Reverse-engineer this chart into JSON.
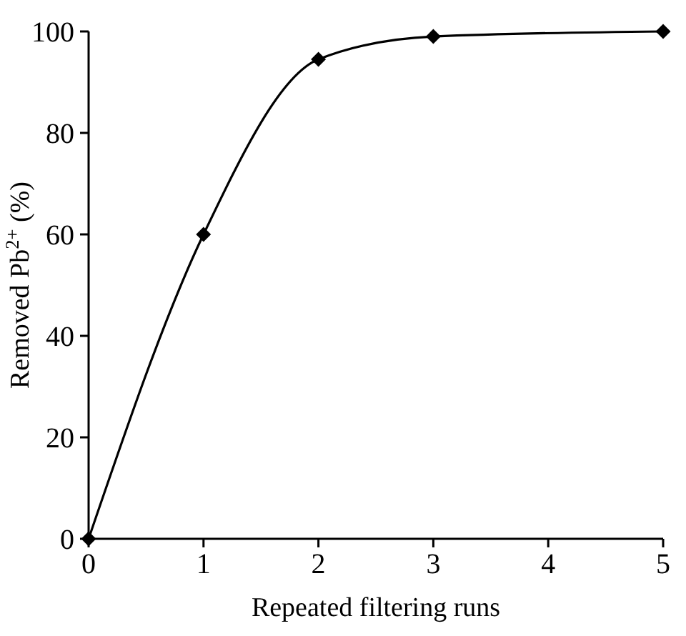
{
  "chart_data": {
    "type": "line",
    "xlabel": "Repeated filtering runs",
    "ylabel": "Removed Pb$^{2+}$ (%)",
    "x": [
      0,
      1,
      2,
      3,
      5
    ],
    "series": [
      {
        "color": "#000000",
        "values": [
          0,
          60,
          94.5,
          99,
          100
        ]
      }
    ],
    "xlim": [
      0,
      5
    ],
    "xticks": [
      0,
      1,
      2,
      3,
      4,
      5
    ],
    "ylim": [
      0,
      100
    ],
    "yticks": [
      0,
      20,
      40,
      60,
      80,
      100
    ],
    "marker": "diamond",
    "line_style": "solid",
    "grid": false
  }
}
